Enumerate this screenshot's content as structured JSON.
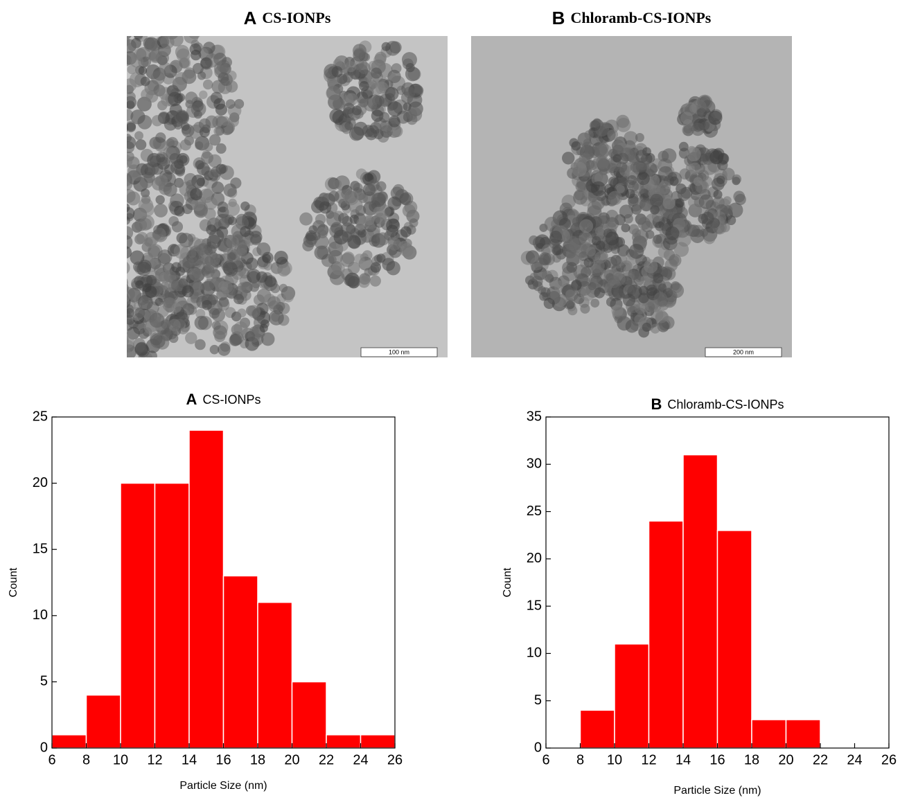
{
  "images": [
    {
      "letter": "A",
      "title": "CS-IONPs",
      "scale_bar": "100 nm"
    },
    {
      "letter": "B",
      "title": "Chloramb-CS-IONPs",
      "scale_bar": "200 nm"
    }
  ],
  "chart_data": [
    {
      "type": "histogram",
      "title_letter": "A",
      "title": "CS-IONPs",
      "xlabel": "Particle Size (nm)",
      "ylabel": "Count",
      "bins": [
        6,
        8,
        10,
        12,
        14,
        16,
        18,
        20,
        22,
        24,
        26
      ],
      "values": [
        1,
        4,
        20,
        20,
        24,
        13,
        11,
        5,
        1,
        1
      ],
      "color": "#ff0000",
      "xlim": [
        6,
        26
      ],
      "xticks": [
        6,
        8,
        10,
        12,
        14,
        16,
        18,
        20,
        22,
        24,
        26
      ],
      "ylim": [
        0,
        25
      ],
      "yticks": [
        0,
        5,
        10,
        15,
        20,
        25
      ]
    },
    {
      "type": "histogram",
      "title_letter": "B",
      "title": "Chloramb-CS-IONPs",
      "xlabel": "Particle Size (nm)",
      "ylabel": "Count",
      "bins": [
        8,
        10,
        12,
        14,
        16,
        18,
        20,
        22
      ],
      "values": [
        4,
        11,
        24,
        31,
        23,
        3,
        3
      ],
      "color": "#ff0000",
      "xlim": [
        6,
        26
      ],
      "xticks": [
        6,
        8,
        10,
        12,
        14,
        16,
        18,
        20,
        22,
        24,
        26
      ],
      "ylim": [
        0,
        35
      ],
      "yticks": [
        0,
        5,
        10,
        15,
        20,
        25,
        30,
        35
      ]
    }
  ]
}
